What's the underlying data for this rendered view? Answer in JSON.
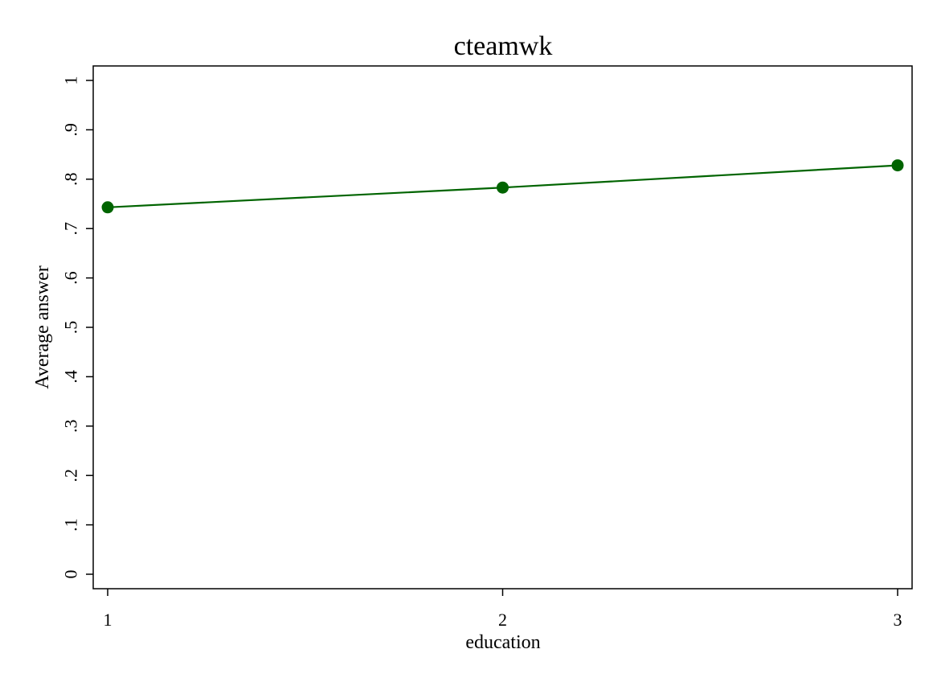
{
  "chart_data": {
    "type": "line",
    "title": "cteamwk",
    "xlabel": "education",
    "ylabel": "Average answer",
    "x": [
      1,
      2,
      3
    ],
    "x_tick_labels": [
      "1",
      "2",
      "3"
    ],
    "y_ticks": [
      0,
      0.1,
      0.2,
      0.3,
      0.4,
      0.5,
      0.6,
      0.7,
      0.8,
      0.9,
      1
    ],
    "y_tick_labels": [
      "0",
      ".1",
      ".2",
      ".3",
      ".4",
      ".5",
      ".6",
      ".7",
      ".8",
      ".9",
      "1"
    ],
    "ylim": [
      0,
      1
    ],
    "xlim": [
      1,
      3
    ],
    "grid": false,
    "legend": "none",
    "series": [
      {
        "values": [
          0.743,
          0.783,
          0.828
        ],
        "color": "#006400",
        "marker": "circle"
      }
    ]
  }
}
